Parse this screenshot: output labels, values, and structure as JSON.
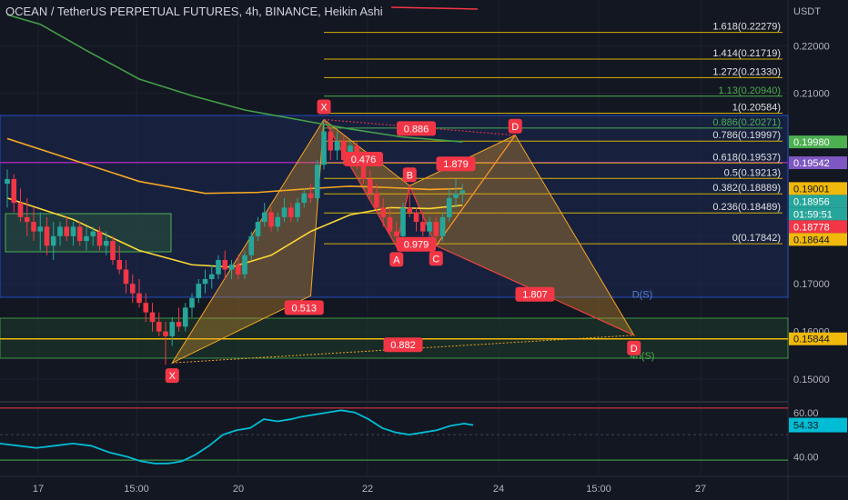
{
  "header": {
    "title": "OCEAN / TetherUS PERPETUAL FUTURES, 4h, BINANCE, Heikin Ashi"
  },
  "chart_data": {
    "type": "candlestick",
    "symbol": "OCEAN / TetherUS PERPETUAL FUTURES",
    "interval": "4h",
    "exchange": "BINANCE",
    "style": "Heikin Ashi",
    "currency_label": "USDT",
    "ylim": [
      0.1456,
      0.2296
    ],
    "price_ticks": [
      0.15,
      0.16,
      0.17,
      0.18,
      0.21,
      0.22
    ],
    "x_tick_labels": [
      "17",
      "15:00",
      "20",
      "22",
      "24",
      "15:00",
      "27"
    ],
    "price_badges": [
      {
        "label": "0.19980",
        "value": 0.1998,
        "color": "#4caf50"
      },
      {
        "label": "0.19542",
        "value": 0.19542,
        "color": "#7e57c2"
      },
      {
        "label": "0.19001",
        "value": 0.19001,
        "color": "#f0b90b"
      },
      {
        "label": "0.18956",
        "value": 0.18956,
        "color": "#26a69a"
      },
      {
        "label": "01:59:51",
        "value": 0.1881,
        "color": "#26a69a"
      },
      {
        "label": "0.18778",
        "value": 0.18778,
        "color": "#f23645"
      },
      {
        "label": "0.18644",
        "value": 0.18644,
        "color": "#f0b90b"
      },
      {
        "label": "0.15844",
        "value": 0.15844,
        "color": "#f0b90b"
      }
    ],
    "fib_levels": [
      {
        "label": "1.618(0.22279)",
        "value": 0.22279
      },
      {
        "label": "1.414(0.21719)",
        "value": 0.21719
      },
      {
        "label": "1.272(0.21330)",
        "value": 0.2133
      },
      {
        "label": "1.13(0.20940)",
        "value": 0.2094,
        "color": "#4caf50"
      },
      {
        "label": "1(0.20584)",
        "value": 0.20584
      },
      {
        "label": "0.886(0.20271)",
        "value": 0.20271,
        "color": "#4caf50"
      },
      {
        "label": "0.786(0.19997)",
        "value": 0.19997
      },
      {
        "label": "0.618(0.19537)",
        "value": 0.19537
      },
      {
        "label": "0.5(0.19213)",
        "value": 0.19213
      },
      {
        "label": "0.382(0.18889)",
        "value": 0.18889
      },
      {
        "label": "0.236(0.18489)",
        "value": 0.18489
      },
      {
        "label": "0(0.17842)",
        "value": 0.17842
      }
    ],
    "zone_labels": [
      {
        "label": "D(S)",
        "value": 0.1671,
        "color": "#5b7bd5"
      },
      {
        "label": "4h(S)",
        "value": 0.1542,
        "color": "#4caf50"
      }
    ],
    "pattern_points": [
      {
        "label": "X",
        "bar": 48,
        "value": 0.2045
      },
      {
        "label": "A",
        "bar": 59,
        "value": 0.1778
      },
      {
        "label": "B",
        "bar": 61,
        "value": 0.1906
      },
      {
        "label": "C",
        "bar": 65,
        "value": 0.178
      },
      {
        "label": "D",
        "bar": 77,
        "value": 0.2012
      }
    ],
    "pattern_points_2": [
      {
        "label": "X",
        "bar": 25,
        "value": 0.1534
      },
      {
        "label": "D",
        "bar": 95,
        "value": 0.1592
      }
    ],
    "ratio_labels": [
      {
        "label": "0.886",
        "bar": 62,
        "value": 0.2026
      },
      {
        "label": "0.476",
        "bar": 54,
        "value": 0.1962
      },
      {
        "label": "1.879",
        "bar": 68,
        "value": 0.1952
      },
      {
        "label": "0.979",
        "bar": 62,
        "value": 0.1783
      },
      {
        "label": "0.513",
        "bar": 45,
        "value": 0.165
      },
      {
        "label": "1.807",
        "bar": 80,
        "value": 0.1678
      },
      {
        "label": "0.882",
        "bar": 60,
        "value": 0.1572
      }
    ],
    "candles": [
      [
        0.191,
        0.194,
        0.186,
        0.192
      ],
      [
        0.192,
        0.193,
        0.185,
        0.187
      ],
      [
        0.187,
        0.19,
        0.183,
        0.184
      ],
      [
        0.184,
        0.188,
        0.18,
        0.183
      ],
      [
        0.183,
        0.186,
        0.179,
        0.181
      ],
      [
        0.181,
        0.185,
        0.177,
        0.182
      ],
      [
        0.182,
        0.184,
        0.176,
        0.178
      ],
      [
        0.178,
        0.183,
        0.175,
        0.18
      ],
      [
        0.18,
        0.183,
        0.178,
        0.182
      ],
      [
        0.182,
        0.184,
        0.179,
        0.18
      ],
      [
        0.18,
        0.183,
        0.178,
        0.182
      ],
      [
        0.182,
        0.183,
        0.178,
        0.179
      ],
      [
        0.179,
        0.182,
        0.177,
        0.18
      ],
      [
        0.18,
        0.182,
        0.178,
        0.181
      ],
      [
        0.181,
        0.182,
        0.177,
        0.178
      ],
      [
        0.178,
        0.181,
        0.176,
        0.179
      ],
      [
        0.179,
        0.18,
        0.174,
        0.175
      ],
      [
        0.175,
        0.178,
        0.172,
        0.173
      ],
      [
        0.173,
        0.175,
        0.168,
        0.17
      ],
      [
        0.17,
        0.172,
        0.166,
        0.168
      ],
      [
        0.168,
        0.171,
        0.165,
        0.166
      ],
      [
        0.166,
        0.168,
        0.162,
        0.164
      ],
      [
        0.164,
        0.166,
        0.16,
        0.162
      ],
      [
        0.162,
        0.164,
        0.159,
        0.16
      ],
      [
        0.16,
        0.162,
        0.153,
        0.159
      ],
      [
        0.159,
        0.163,
        0.157,
        0.162
      ],
      [
        0.162,
        0.165,
        0.16,
        0.161
      ],
      [
        0.161,
        0.166,
        0.16,
        0.165
      ],
      [
        0.165,
        0.168,
        0.163,
        0.167
      ],
      [
        0.167,
        0.171,
        0.166,
        0.17
      ],
      [
        0.17,
        0.173,
        0.168,
        0.171
      ],
      [
        0.171,
        0.174,
        0.169,
        0.172
      ],
      [
        0.172,
        0.176,
        0.171,
        0.175
      ],
      [
        0.175,
        0.177,
        0.171,
        0.173
      ],
      [
        0.173,
        0.175,
        0.171,
        0.174
      ],
      [
        0.174,
        0.176,
        0.171,
        0.172
      ],
      [
        0.172,
        0.177,
        0.171,
        0.176
      ],
      [
        0.176,
        0.181,
        0.175,
        0.18
      ],
      [
        0.18,
        0.184,
        0.179,
        0.183
      ],
      [
        0.183,
        0.187,
        0.182,
        0.185
      ],
      [
        0.185,
        0.186,
        0.181,
        0.182
      ],
      [
        0.182,
        0.185,
        0.181,
        0.184
      ],
      [
        0.184,
        0.188,
        0.183,
        0.186
      ],
      [
        0.186,
        0.187,
        0.183,
        0.184
      ],
      [
        0.184,
        0.188,
        0.183,
        0.187
      ],
      [
        0.187,
        0.19,
        0.186,
        0.189
      ],
      [
        0.189,
        0.191,
        0.187,
        0.188
      ],
      [
        0.188,
        0.196,
        0.187,
        0.195
      ],
      [
        0.195,
        0.2045,
        0.194,
        0.202
      ],
      [
        0.202,
        0.203,
        0.196,
        0.198
      ],
      [
        0.198,
        0.202,
        0.196,
        0.2
      ],
      [
        0.2,
        0.201,
        0.195,
        0.196
      ],
      [
        0.196,
        0.2,
        0.195,
        0.199
      ],
      [
        0.199,
        0.2,
        0.194,
        0.195
      ],
      [
        0.195,
        0.197,
        0.191,
        0.192
      ],
      [
        0.192,
        0.194,
        0.188,
        0.189
      ],
      [
        0.189,
        0.191,
        0.185,
        0.186
      ],
      [
        0.186,
        0.188,
        0.182,
        0.184
      ],
      [
        0.184,
        0.186,
        0.18,
        0.181
      ],
      [
        0.181,
        0.183,
        0.1778,
        0.18
      ],
      [
        0.18,
        0.187,
        0.179,
        0.186
      ],
      [
        0.186,
        0.1906,
        0.184,
        0.185
      ],
      [
        0.185,
        0.186,
        0.181,
        0.183
      ],
      [
        0.183,
        0.185,
        0.18,
        0.181
      ],
      [
        0.181,
        0.184,
        0.179,
        0.183
      ],
      [
        0.183,
        0.184,
        0.178,
        0.18
      ],
      [
        0.18,
        0.185,
        0.179,
        0.184
      ],
      [
        0.184,
        0.19,
        0.183,
        0.188
      ],
      [
        0.188,
        0.192,
        0.186,
        0.189
      ],
      [
        0.189,
        0.191,
        0.187,
        0.1896
      ]
    ],
    "sma_yellow": [
      [
        0,
        0.188
      ],
      [
        10,
        0.1835
      ],
      [
        20,
        0.177
      ],
      [
        28,
        0.174
      ],
      [
        34,
        0.1735
      ],
      [
        40,
        0.176
      ],
      [
        46,
        0.181
      ],
      [
        52,
        0.1845
      ],
      [
        58,
        0.186
      ],
      [
        64,
        0.1858
      ],
      [
        69,
        0.1865
      ]
    ],
    "sma_orange": [
      [
        0,
        0.2005
      ],
      [
        10,
        0.196
      ],
      [
        20,
        0.1915
      ],
      [
        30,
        0.189
      ],
      [
        38,
        0.1892
      ],
      [
        46,
        0.19
      ],
      [
        52,
        0.1905
      ],
      [
        58,
        0.1902
      ],
      [
        64,
        0.1898
      ],
      [
        69,
        0.19
      ]
    ],
    "sma_green": [
      [
        0,
        0.2265
      ],
      [
        5,
        0.2245
      ],
      [
        12,
        0.219
      ],
      [
        20,
        0.213
      ],
      [
        28,
        0.2095
      ],
      [
        36,
        0.2065
      ],
      [
        44,
        0.2045
      ],
      [
        52,
        0.2025
      ],
      [
        60,
        0.2008
      ],
      [
        69,
        0.1998
      ]
    ],
    "indicator": {
      "current_value": "54.33",
      "ticks": [
        {
          "label": "60.00",
          "value": 60
        },
        {
          "label": "40.00",
          "value": 40
        }
      ],
      "upper_band": 62,
      "lower_band": 38.5,
      "ylim": [
        32,
        64
      ],
      "values": [
        [
          0,
          46
        ],
        [
          4,
          45
        ],
        [
          8,
          44
        ],
        [
          12,
          45
        ],
        [
          16,
          46
        ],
        [
          20,
          45
        ],
        [
          24,
          42
        ],
        [
          28,
          40
        ],
        [
          31,
          38
        ],
        [
          34,
          37
        ],
        [
          37,
          37
        ],
        [
          40,
          38
        ],
        [
          43,
          41
        ],
        [
          46,
          45
        ],
        [
          49,
          50
        ],
        [
          52,
          52
        ],
        [
          55,
          53
        ],
        [
          58,
          57
        ],
        [
          61,
          56
        ],
        [
          64,
          57
        ],
        [
          66,
          58
        ],
        [
          69,
          59
        ],
        [
          72,
          60
        ],
        [
          75,
          61
        ],
        [
          78,
          60
        ],
        [
          81,
          57
        ],
        [
          84,
          53
        ],
        [
          87,
          51
        ],
        [
          90,
          50
        ],
        [
          93,
          51
        ],
        [
          96,
          52
        ],
        [
          99,
          54
        ],
        [
          102,
          55
        ],
        [
          104,
          54.33
        ]
      ]
    }
  }
}
